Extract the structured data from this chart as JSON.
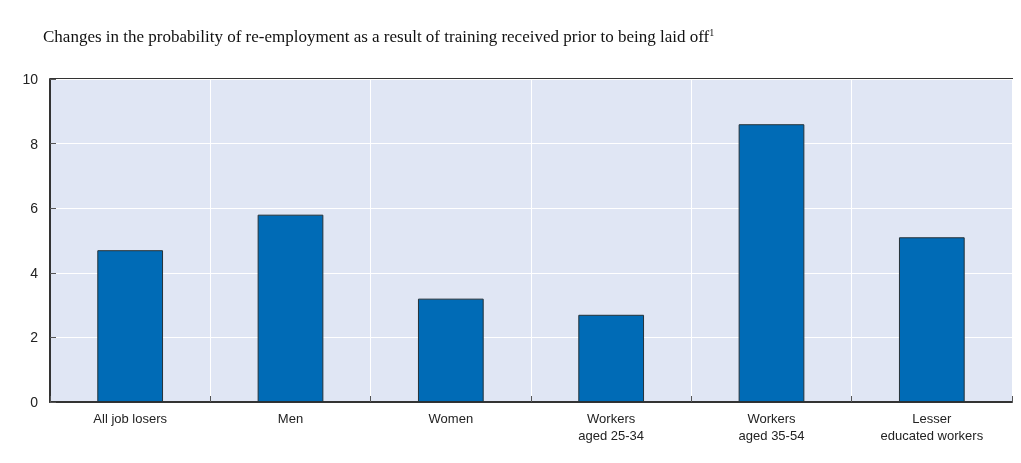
{
  "chart_data": {
    "type": "bar",
    "title": "Changes in the probability of re-employment as a result of training received prior to being laid off$^{1}$",
    "categories": [
      "All job losers",
      "Men",
      "Women",
      "Workers\naged 25-34",
      "Workers\naged 35-54",
      "Lesser\neducated workers"
    ],
    "values": [
      4.7,
      5.8,
      3.2,
      2.7,
      8.6,
      5.1
    ],
    "color": "#006bb6",
    "ylim": [
      0,
      10
    ],
    "yticks": [
      0,
      2,
      4,
      6,
      8,
      10
    ],
    "grid": true
  }
}
